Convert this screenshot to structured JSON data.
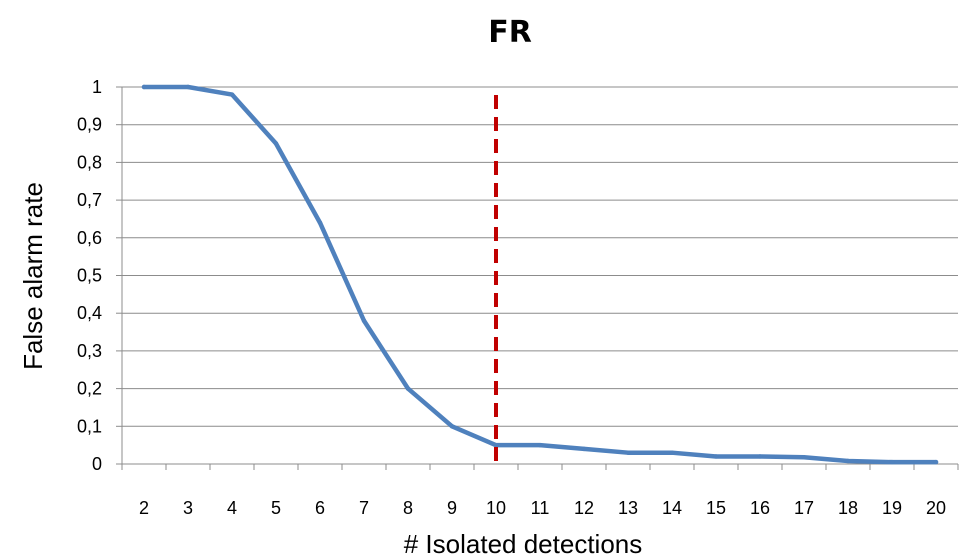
{
  "chart_data": {
    "type": "line",
    "title": "FR",
    "xlabel": "# Isolated detections",
    "ylabel": "False alarm rate",
    "x": [
      2,
      3,
      4,
      5,
      6,
      7,
      8,
      9,
      10,
      11,
      12,
      13,
      14,
      15,
      16,
      17,
      18,
      19,
      20
    ],
    "x_tick_labels": [
      "2",
      "3",
      "4",
      "5",
      "6",
      "7",
      "8",
      "9",
      "10",
      "11",
      "12",
      "13",
      "14",
      "15",
      "16",
      "17",
      "18",
      "19",
      "20"
    ],
    "y_tick_values": [
      0,
      0.1,
      0.2,
      0.3,
      0.4,
      0.5,
      0.6,
      0.7,
      0.8,
      0.9,
      1
    ],
    "y_tick_labels": [
      "0",
      "0,1",
      "0,2",
      "0,3",
      "0,4",
      "0,5",
      "0,6",
      "0,7",
      "0,8",
      "0,9",
      "1"
    ],
    "ylim": [
      0,
      1
    ],
    "grid": true,
    "series": [
      {
        "values": [
          1,
          1,
          0.98,
          0.85,
          0.64,
          0.38,
          0.2,
          0.1,
          0.05,
          0.05,
          0.04,
          0.03,
          0.03,
          0.02,
          0.02,
          0.018,
          0.008,
          0.005,
          0.005
        ],
        "color": "#4f81bd"
      }
    ],
    "annotations": [
      {
        "type": "vertical-line",
        "x": 10,
        "style": "dashed",
        "color": "#c00000"
      }
    ]
  }
}
